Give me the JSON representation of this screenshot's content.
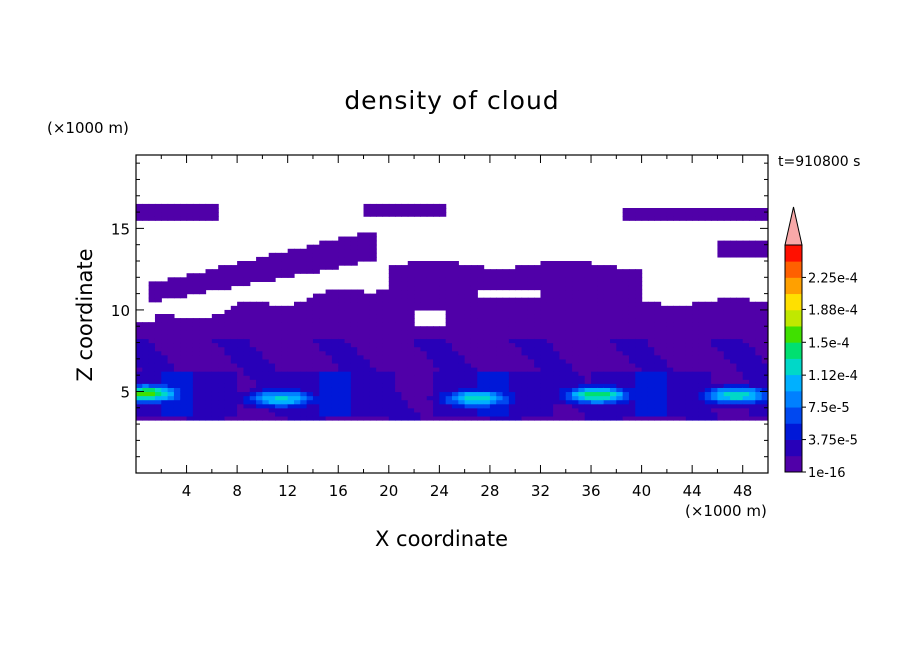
{
  "chart_data": {
    "type": "heatmap",
    "title": "density of cloud",
    "xlabel": "X coordinate",
    "ylabel": "Z coordinate",
    "x_unit": "(×1000 m)",
    "z_unit": "(×1000 m)",
    "time_label": "t=910800 s",
    "xlim": [
      0,
      50
    ],
    "ylim": [
      0,
      19.5
    ],
    "x_ticks": [
      4,
      8,
      12,
      16,
      20,
      24,
      28,
      32,
      36,
      40,
      44,
      48
    ],
    "y_ticks": [
      5,
      10,
      15
    ],
    "colorbar": {
      "labels": [
        "2.25e-4",
        "1.88e-4",
        "1.5e-4",
        "1.12e-4",
        "7.5e-5",
        "3.75e-5",
        "1e-16"
      ],
      "label_values": [
        0.000225,
        0.000188,
        0.00015,
        0.000112,
        7.5e-05,
        3.75e-05,
        1e-16
      ],
      "levels": [
        1e-16,
        1.875e-05,
        3.75e-05,
        5.625e-05,
        7.5e-05,
        9.375e-05,
        0.0001125,
        0.00013125,
        0.00015,
        0.00016875,
        0.0001875,
        0.00020625,
        0.000225,
        0.00024375
      ],
      "colors": [
        "#5000a8",
        "#2800b8",
        "#0018d8",
        "#0048f0",
        "#0080ff",
        "#00b0ff",
        "#00d8c8",
        "#00e070",
        "#40e000",
        "#c0e800",
        "#ffe000",
        "#ffa000",
        "#ff6000",
        "#ff1000"
      ],
      "overflow_color": "#f8a8a8"
    },
    "cloud_regions": [
      {
        "name": "upper layer left",
        "z_range": [
          15.5,
          16.5
        ],
        "x_range": [
          0,
          6.3
        ]
      },
      {
        "name": "upper layer center",
        "z_range": [
          15.7,
          16.6
        ],
        "x_range": [
          18,
          24.6
        ]
      },
      {
        "name": "upper layer right",
        "z_range": [
          15.5,
          16.3
        ],
        "x_range": [
          38.5,
          50
        ]
      },
      {
        "name": "sloped band",
        "z_range": [
          10.5,
          15.2
        ],
        "x_range": [
          1.5,
          19
        ]
      },
      {
        "name": "main cloud body",
        "z_range": [
          3.2,
          13.5
        ],
        "x_range": [
          0,
          50
        ]
      },
      {
        "name": "peak band",
        "z_range": [
          4.0,
          5.2
        ],
        "x_range": [
          0,
          50
        ]
      }
    ]
  }
}
